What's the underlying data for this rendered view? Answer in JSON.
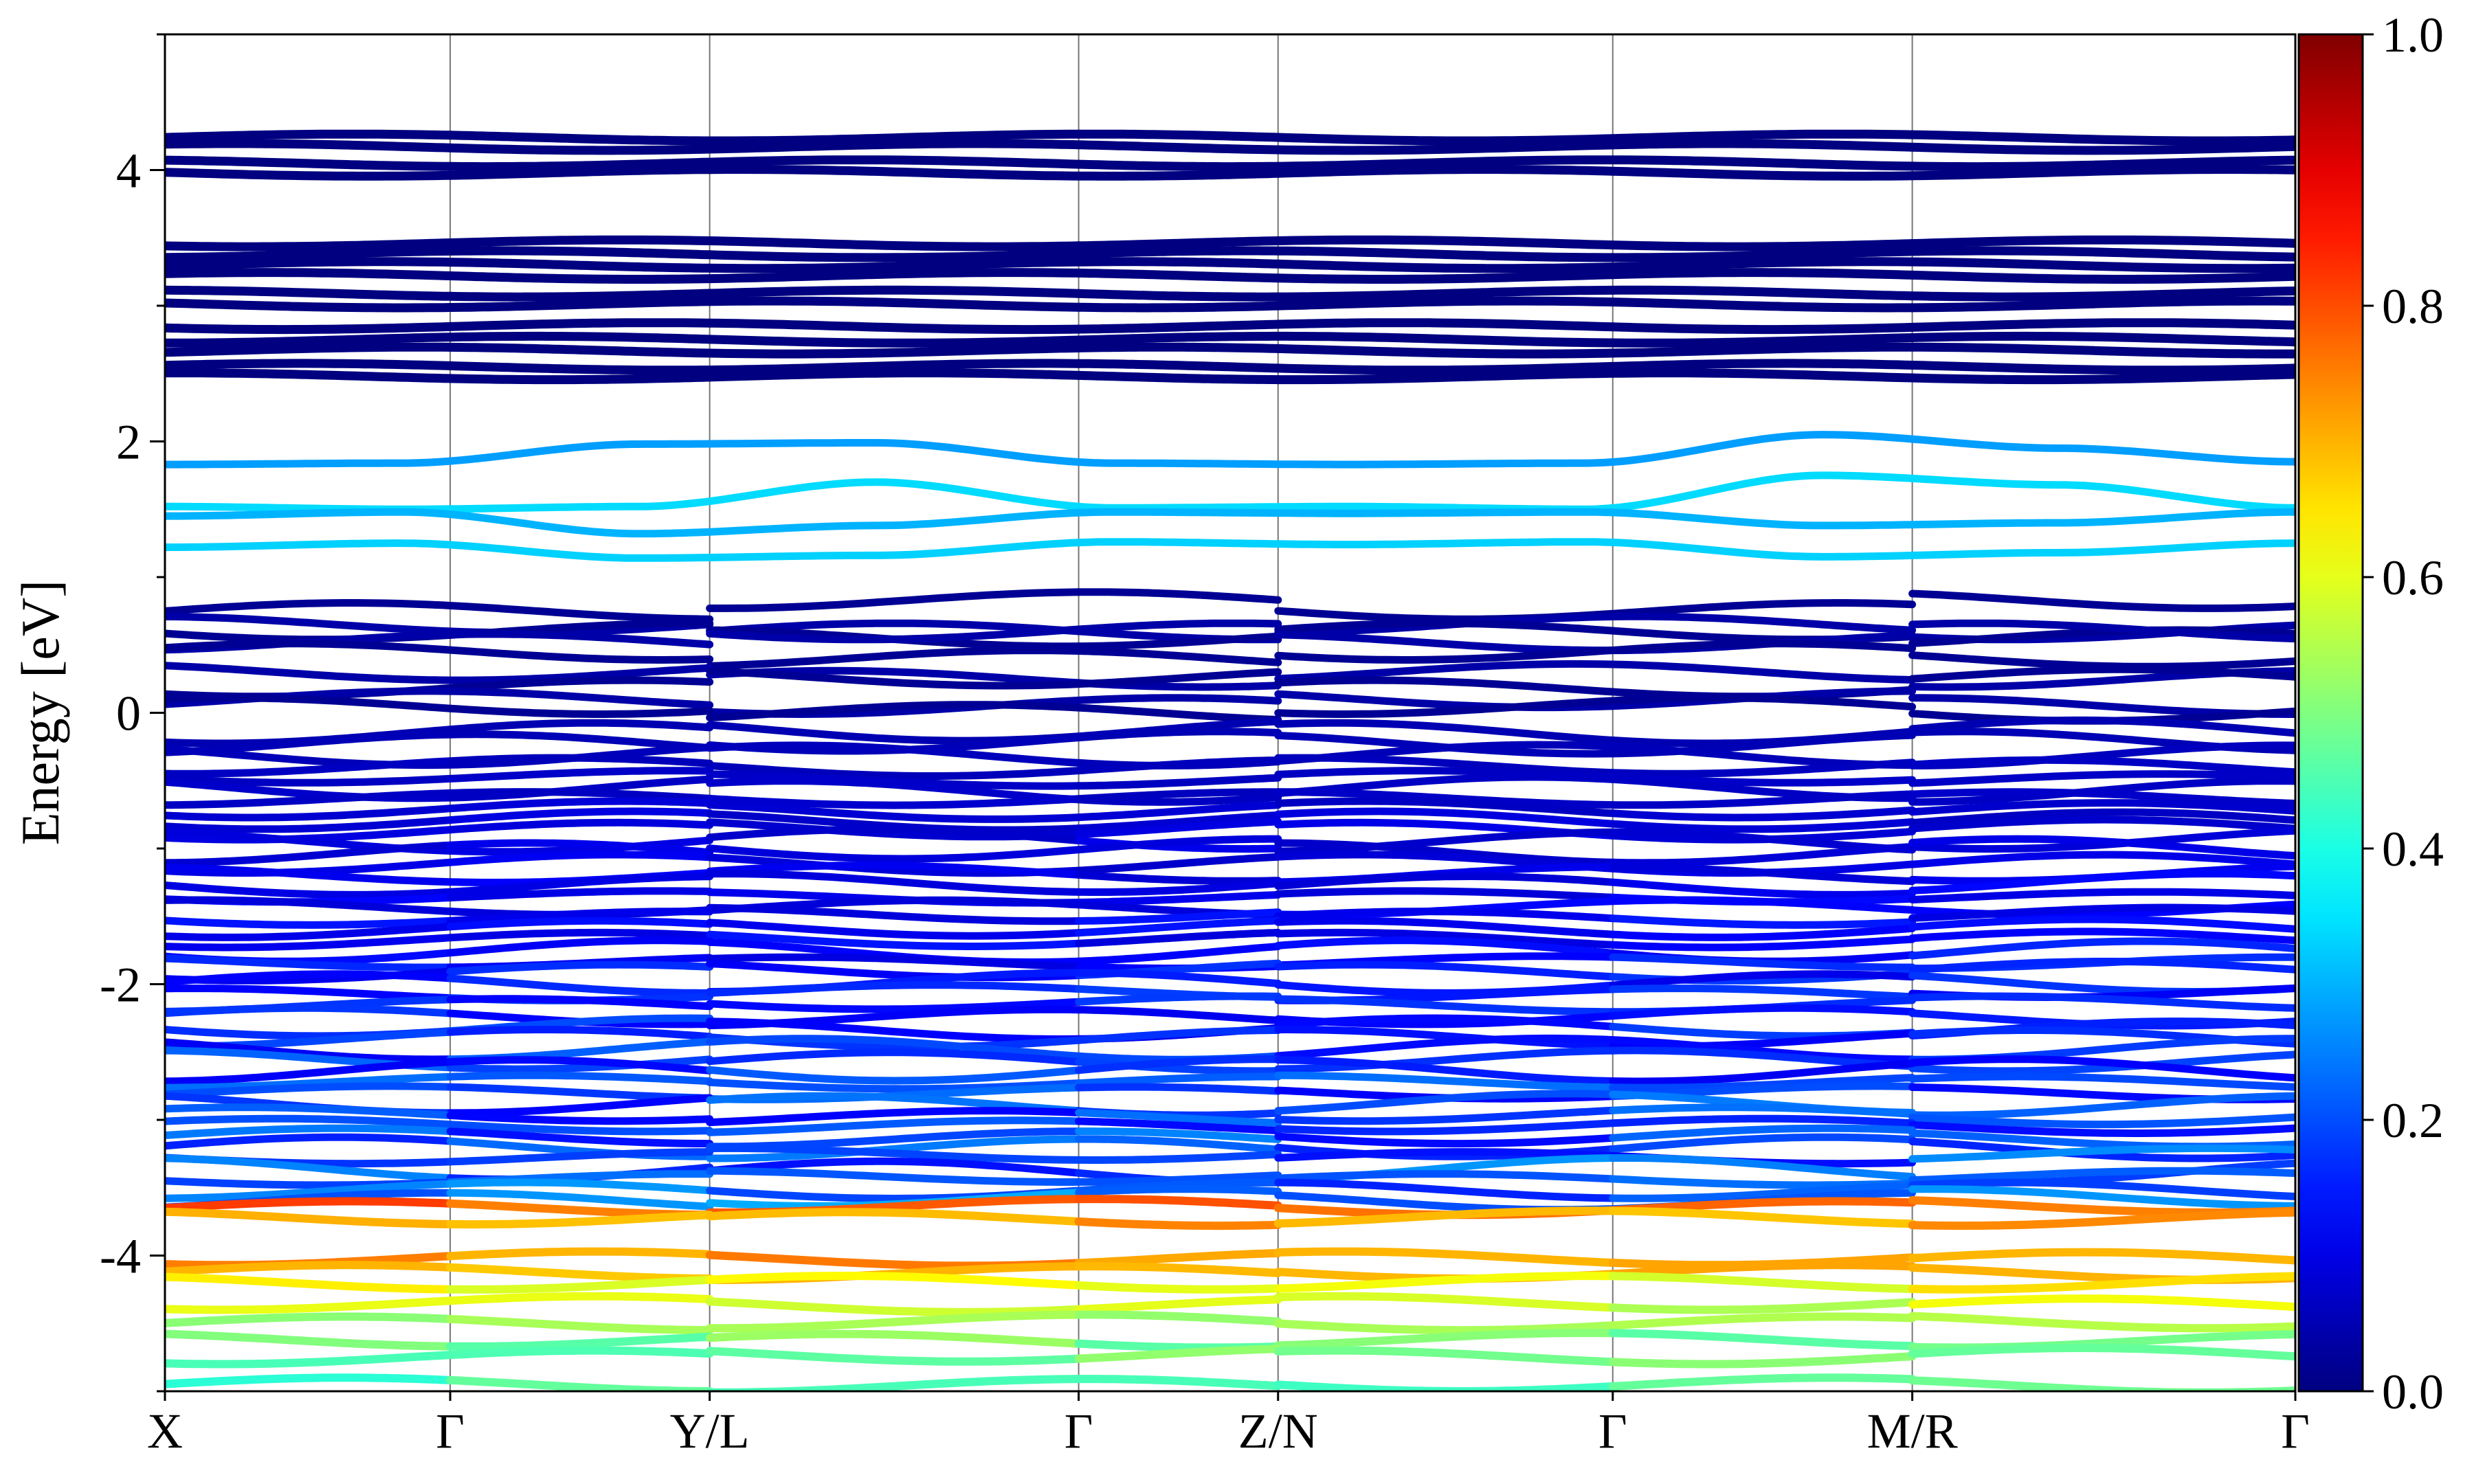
{
  "chart_data": {
    "type": "line",
    "subtype": "electronic band structure with projected weight colormap",
    "title": "",
    "xlabel": "",
    "ylabel": "Energy [eV]",
    "ylim": [
      -5,
      5
    ],
    "yticks": [
      -4,
      -2,
      0,
      2,
      4
    ],
    "ytick_labels": [
      "-4",
      "-2",
      "0",
      "2",
      "4"
    ],
    "k_points": [
      "X",
      "Γ",
      "Y/L",
      "Γ",
      "Z/N",
      "Γ",
      "M/R",
      "Γ"
    ],
    "k_positions": [
      0,
      0.1339,
      0.2557,
      0.4289,
      0.5225,
      0.6796,
      0.8202,
      1.0
    ],
    "vertical_gridlines": true,
    "colorbar": {
      "colormap": "jet",
      "range": [
        0.0,
        1.0
      ],
      "ticks": [
        "0.0",
        "0.2",
        "0.4",
        "0.6",
        "0.8",
        "1.0"
      ]
    },
    "bands_flat_group": {
      "energies": [
        4.24,
        4.17,
        4.05,
        3.98,
        3.46,
        3.38,
        3.3,
        3.22,
        3.09,
        3.01,
        2.85,
        2.75,
        2.67,
        2.55,
        2.48
      ],
      "weight": 0.0
    },
    "bands_gap": [
      {
        "energies": [
          1.83,
          1.84,
          1.98,
          1.99,
          1.84,
          1.83,
          1.84,
          2.05,
          1.95,
          1.85
        ],
        "weight": 0.28
      },
      {
        "energies": [
          1.52,
          1.5,
          1.52,
          1.7,
          1.51,
          1.52,
          1.5,
          1.75,
          1.68,
          1.51
        ],
        "weight": 0.34
      },
      {
        "energies": [
          1.45,
          1.48,
          1.32,
          1.38,
          1.48,
          1.47,
          1.48,
          1.38,
          1.4,
          1.48
        ],
        "weight": 0.3
      },
      {
        "energies": [
          1.22,
          1.25,
          1.14,
          1.16,
          1.26,
          1.24,
          1.26,
          1.15,
          1.18,
          1.25
        ],
        "weight": 0.33
      }
    ],
    "bands_valence_top": {
      "energies": [
        0.75,
        0.65,
        0.6,
        0.52,
        0.45,
        0.3,
        0.18,
        0.1,
        0.05
      ],
      "weight": 0.02
    },
    "bands_valence_dense": {
      "energy_range": [
        -3.6,
        -0.15
      ],
      "weight_range": [
        0.05,
        0.3
      ]
    },
    "bands_deep": [
      {
        "energy": -3.65,
        "weight": 0.78
      },
      {
        "energy": -3.72,
        "weight": 0.72
      },
      {
        "energy": -4.02,
        "weight": 0.72
      },
      {
        "energy": -4.12,
        "weight": 0.68
      },
      {
        "energy": -4.2,
        "weight": 0.62
      },
      {
        "energy": -4.35,
        "weight": 0.58
      },
      {
        "energy": -4.5,
        "weight": 0.55
      },
      {
        "energy": -4.62,
        "weight": 0.5
      },
      {
        "energy": -4.75,
        "weight": 0.48
      },
      {
        "energy": -4.95,
        "weight": 0.45
      }
    ]
  }
}
